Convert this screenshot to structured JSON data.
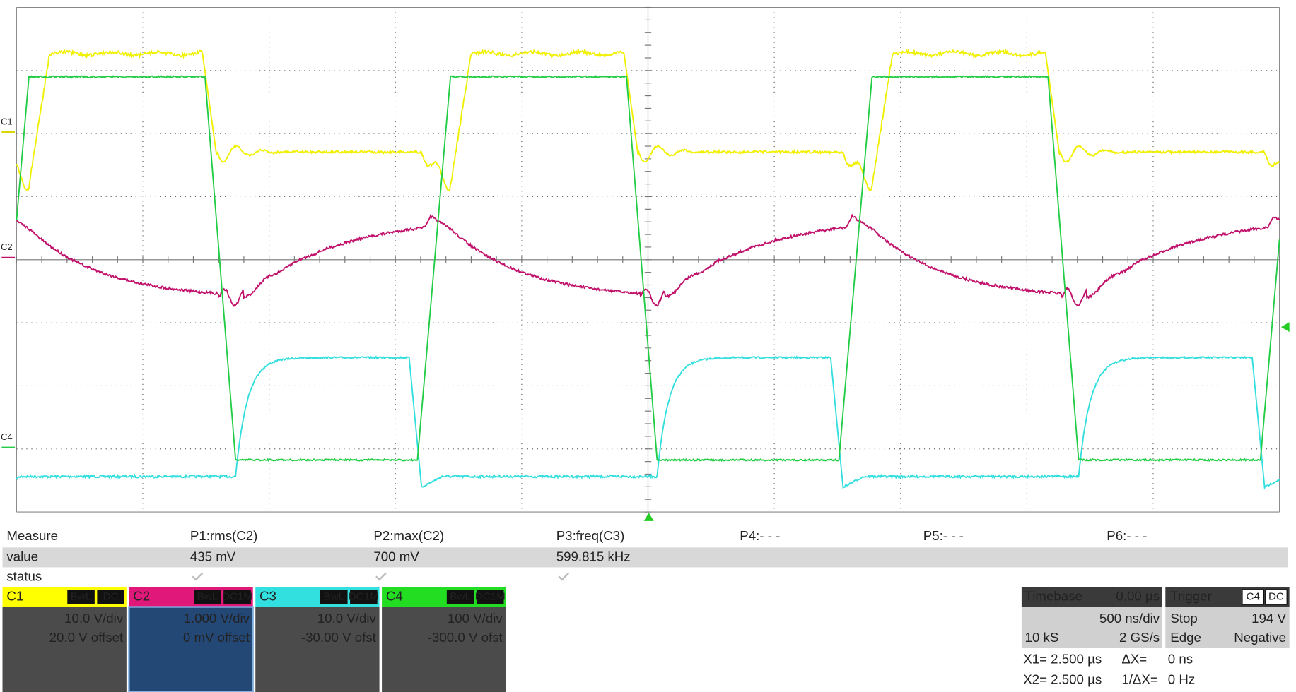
{
  "channel_markers": [
    "C1",
    "C2",
    "C4"
  ],
  "measure": {
    "headers": [
      "Measure",
      "P1:rms(C2)",
      "P2:max(C2)",
      "P3:freq(C3)",
      "P4:- - -",
      "P5:- - -",
      "P6:- - -"
    ],
    "value": [
      "value",
      "435 mV",
      "700 mV",
      "599.815 kHz"
    ],
    "status": "status"
  },
  "channels": [
    {
      "name": "C1",
      "bw": "BwL",
      "coupling": "DC",
      "scale": "10.0 V/div",
      "offset": "20.0 V offset"
    },
    {
      "name": "C2",
      "bw": "BwL",
      "coupling": "DC1M",
      "scale": "1.000 V/div",
      "offset": "0 mV offset"
    },
    {
      "name": "C3",
      "bw": "BwL",
      "coupling": "DC1M",
      "scale": "10.0 V/div",
      "offset": "-30.00 V ofst"
    },
    {
      "name": "C4",
      "bw": "BwL",
      "coupling": "DC1M",
      "scale": "100 V/div",
      "offset": "-300.0 V ofst"
    }
  ],
  "timebase": {
    "title": "Timebase",
    "delay": "0.00 µs",
    "scale": "500 ns/div",
    "samples": "10 kS",
    "rate": "2 GS/s"
  },
  "trigger": {
    "title": "Trigger",
    "source": "C4",
    "coupling": "DC",
    "mode": "Stop",
    "level": "194 V",
    "type": "Edge",
    "slope": "Negative"
  },
  "cursors": [
    {
      "label": "X1= 2.500 µs",
      "delta_label": "ΔX=",
      "delta": "0 ns"
    },
    {
      "label": "X2= 2.500 µs",
      "delta_label": "1/ΔX=",
      "delta": "0 Hz"
    }
  ]
}
